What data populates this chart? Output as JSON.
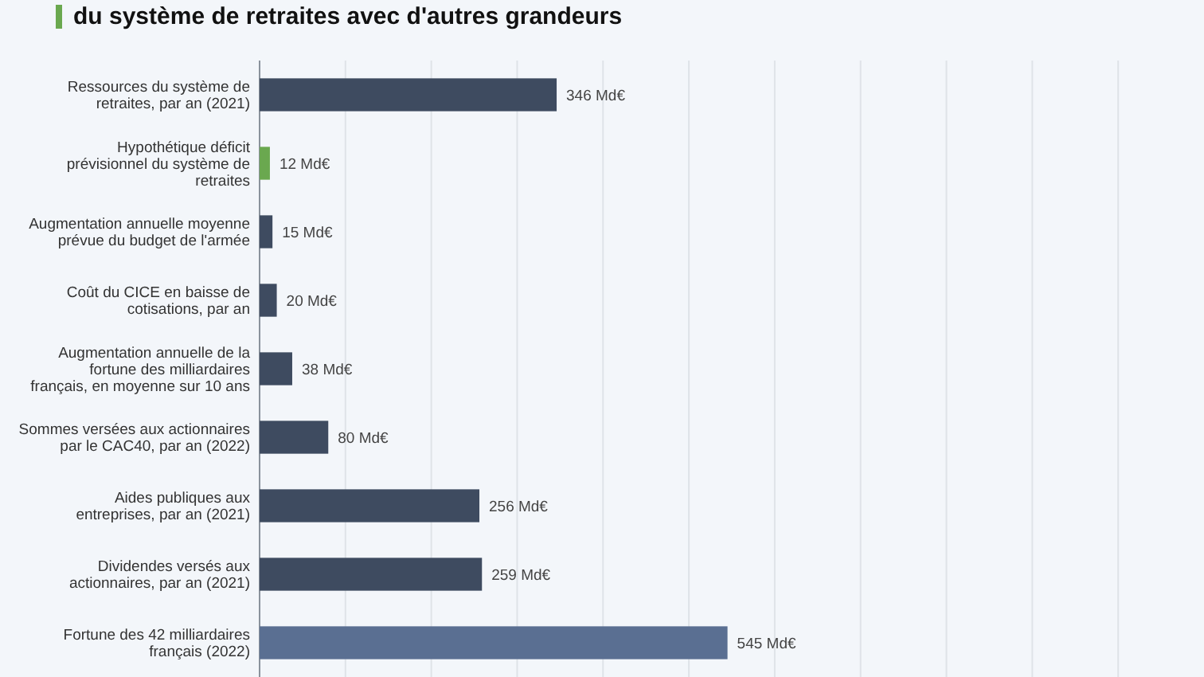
{
  "chart_data": {
    "type": "bar",
    "orientation": "horizontal",
    "title": "du système de retraites avec d'autres grandeurs",
    "categories": [
      "Ressources du système de retraites, par an (2021)",
      "Hypothétique déficit prévisionnel du système de retraites",
      "Augmentation annuelle moyenne prévue du budget de l'armée",
      "Coût du CICE en baisse de cotisations, par an",
      "Augmentation annuelle de la fortune des milliardaires français, en moyenne sur 10 ans",
      "Sommes versées aux actionnaires par le CAC40, par an (2022)",
      "Aides publiques aux entreprises, par an (2021)",
      "Dividendes versés aux actionnaires, par an (2021)",
      "Fortune des 42 milliardaires français (2022)"
    ],
    "values": [
      346,
      12,
      15,
      20,
      38,
      80,
      256,
      259,
      545
    ],
    "value_labels": [
      "346 Md€",
      "12 Md€",
      "15 Md€",
      "20 Md€",
      "38 Md€",
      "80 Md€",
      "256 Md€",
      "259 Md€",
      "545 Md€"
    ],
    "colors": [
      "#3e4b60",
      "#6aa84f",
      "#3e4b60",
      "#3e4b60",
      "#3e4b60",
      "#3e4b60",
      "#3e4b60",
      "#3e4b60",
      "#5a6f92"
    ],
    "xlim": [
      0,
      1100
    ],
    "xticks": [
      {
        "value": 0,
        "label": null
      },
      {
        "value": 100,
        "label": null
      },
      {
        "value": 200,
        "label": null
      },
      {
        "value": 300,
        "label": null
      },
      {
        "value": 400,
        "label": null
      },
      {
        "value": 500,
        "label": null
      },
      {
        "value": 600,
        "label": null
      },
      {
        "value": 700,
        "label": null
      },
      {
        "value": 800,
        "label": null
      },
      {
        "value": 900,
        "label": null
      },
      {
        "value": 1000,
        "label": null
      }
    ],
    "tick_labels": "y",
    "grid": "x"
  }
}
